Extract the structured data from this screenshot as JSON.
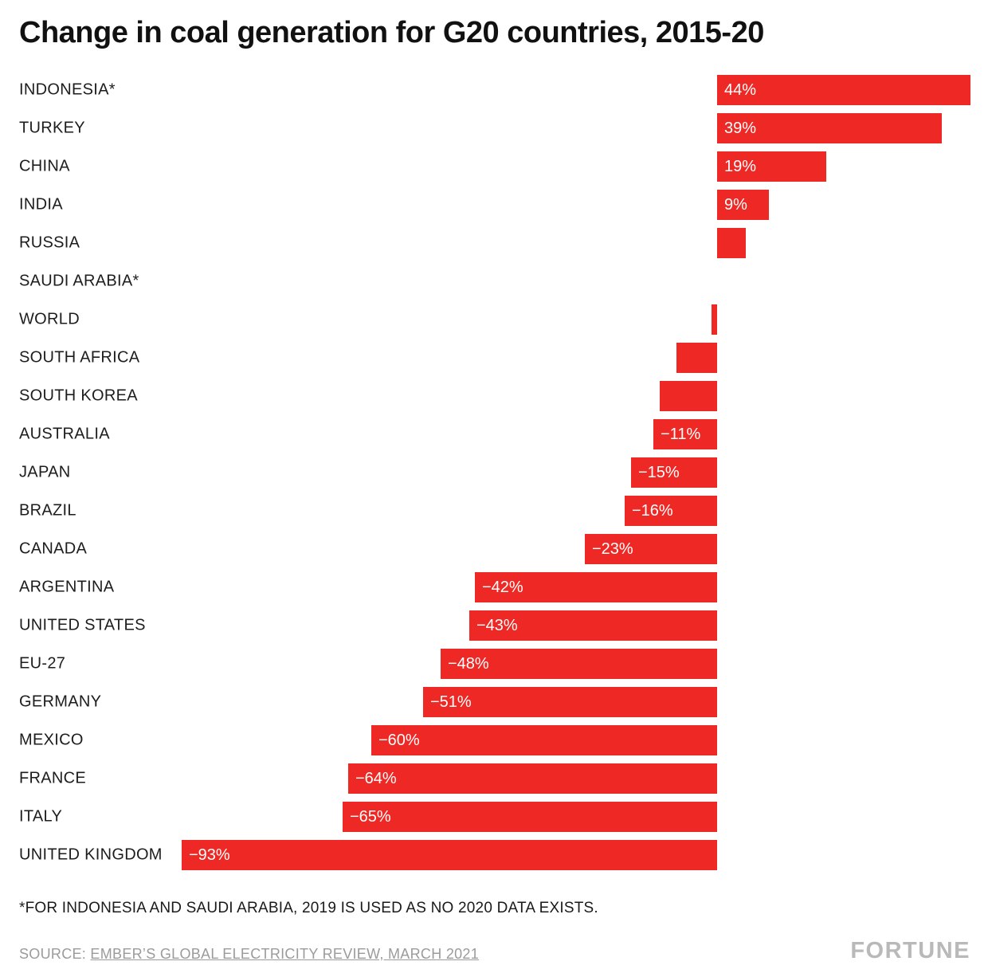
{
  "title": "Change in coal generation for G20 countries, 2015-20",
  "footnote": "*FOR INDONESIA AND SAUDI ARABIA, 2019 IS USED AS NO 2020 DATA EXISTS.",
  "source": {
    "prefix": "SOURCE: ",
    "link": "EMBER’S GLOBAL ELECTRICITY REVIEW, MARCH 2021"
  },
  "logo": "FORTUNE",
  "colors": {
    "bar": "#ee2824",
    "bar_label": "#ffffff",
    "title": "#111111",
    "country_label": "#1d1d1d",
    "source": "#9b9b9b",
    "logo": "#b9b9b9"
  },
  "chart_data": {
    "type": "bar",
    "orientation": "horizontal",
    "title": "Change in coal generation for G20 countries, 2015-20",
    "unit": "%",
    "xlim": [
      -93,
      44
    ],
    "grid": false,
    "legend": false,
    "value_labels_position": "inside-left-of-bar",
    "categories": [
      "INDONESIA*",
      "TURKEY",
      "CHINA",
      "INDIA",
      "RUSSIA",
      "SAUDI ARABIA*",
      "WORLD",
      "SOUTH AFRICA",
      "SOUTH KOREA",
      "AUSTRALIA",
      "JAPAN",
      "BRAZIL",
      "CANADA",
      "ARGENTINA",
      "UNITED STATES",
      "EU-27",
      "GERMANY",
      "MEXICO",
      "FRANCE",
      "ITALY",
      "UNITED KINGDOM"
    ],
    "values": [
      44,
      39,
      19,
      9,
      5,
      0,
      -1,
      -7,
      -10,
      -11,
      -15,
      -16,
      -23,
      -42,
      -43,
      -48,
      -51,
      -60,
      -64,
      -65,
      -93
    ],
    "bar_labels": [
      "44%",
      "39%",
      "19%",
      "9%",
      "",
      "",
      "",
      "",
      "",
      "−11%",
      "−15%",
      "−16%",
      "−23%",
      "−42%",
      "−43%",
      "−48%",
      "−51%",
      "−60%",
      "−64%",
      "−65%",
      "−93%"
    ]
  }
}
